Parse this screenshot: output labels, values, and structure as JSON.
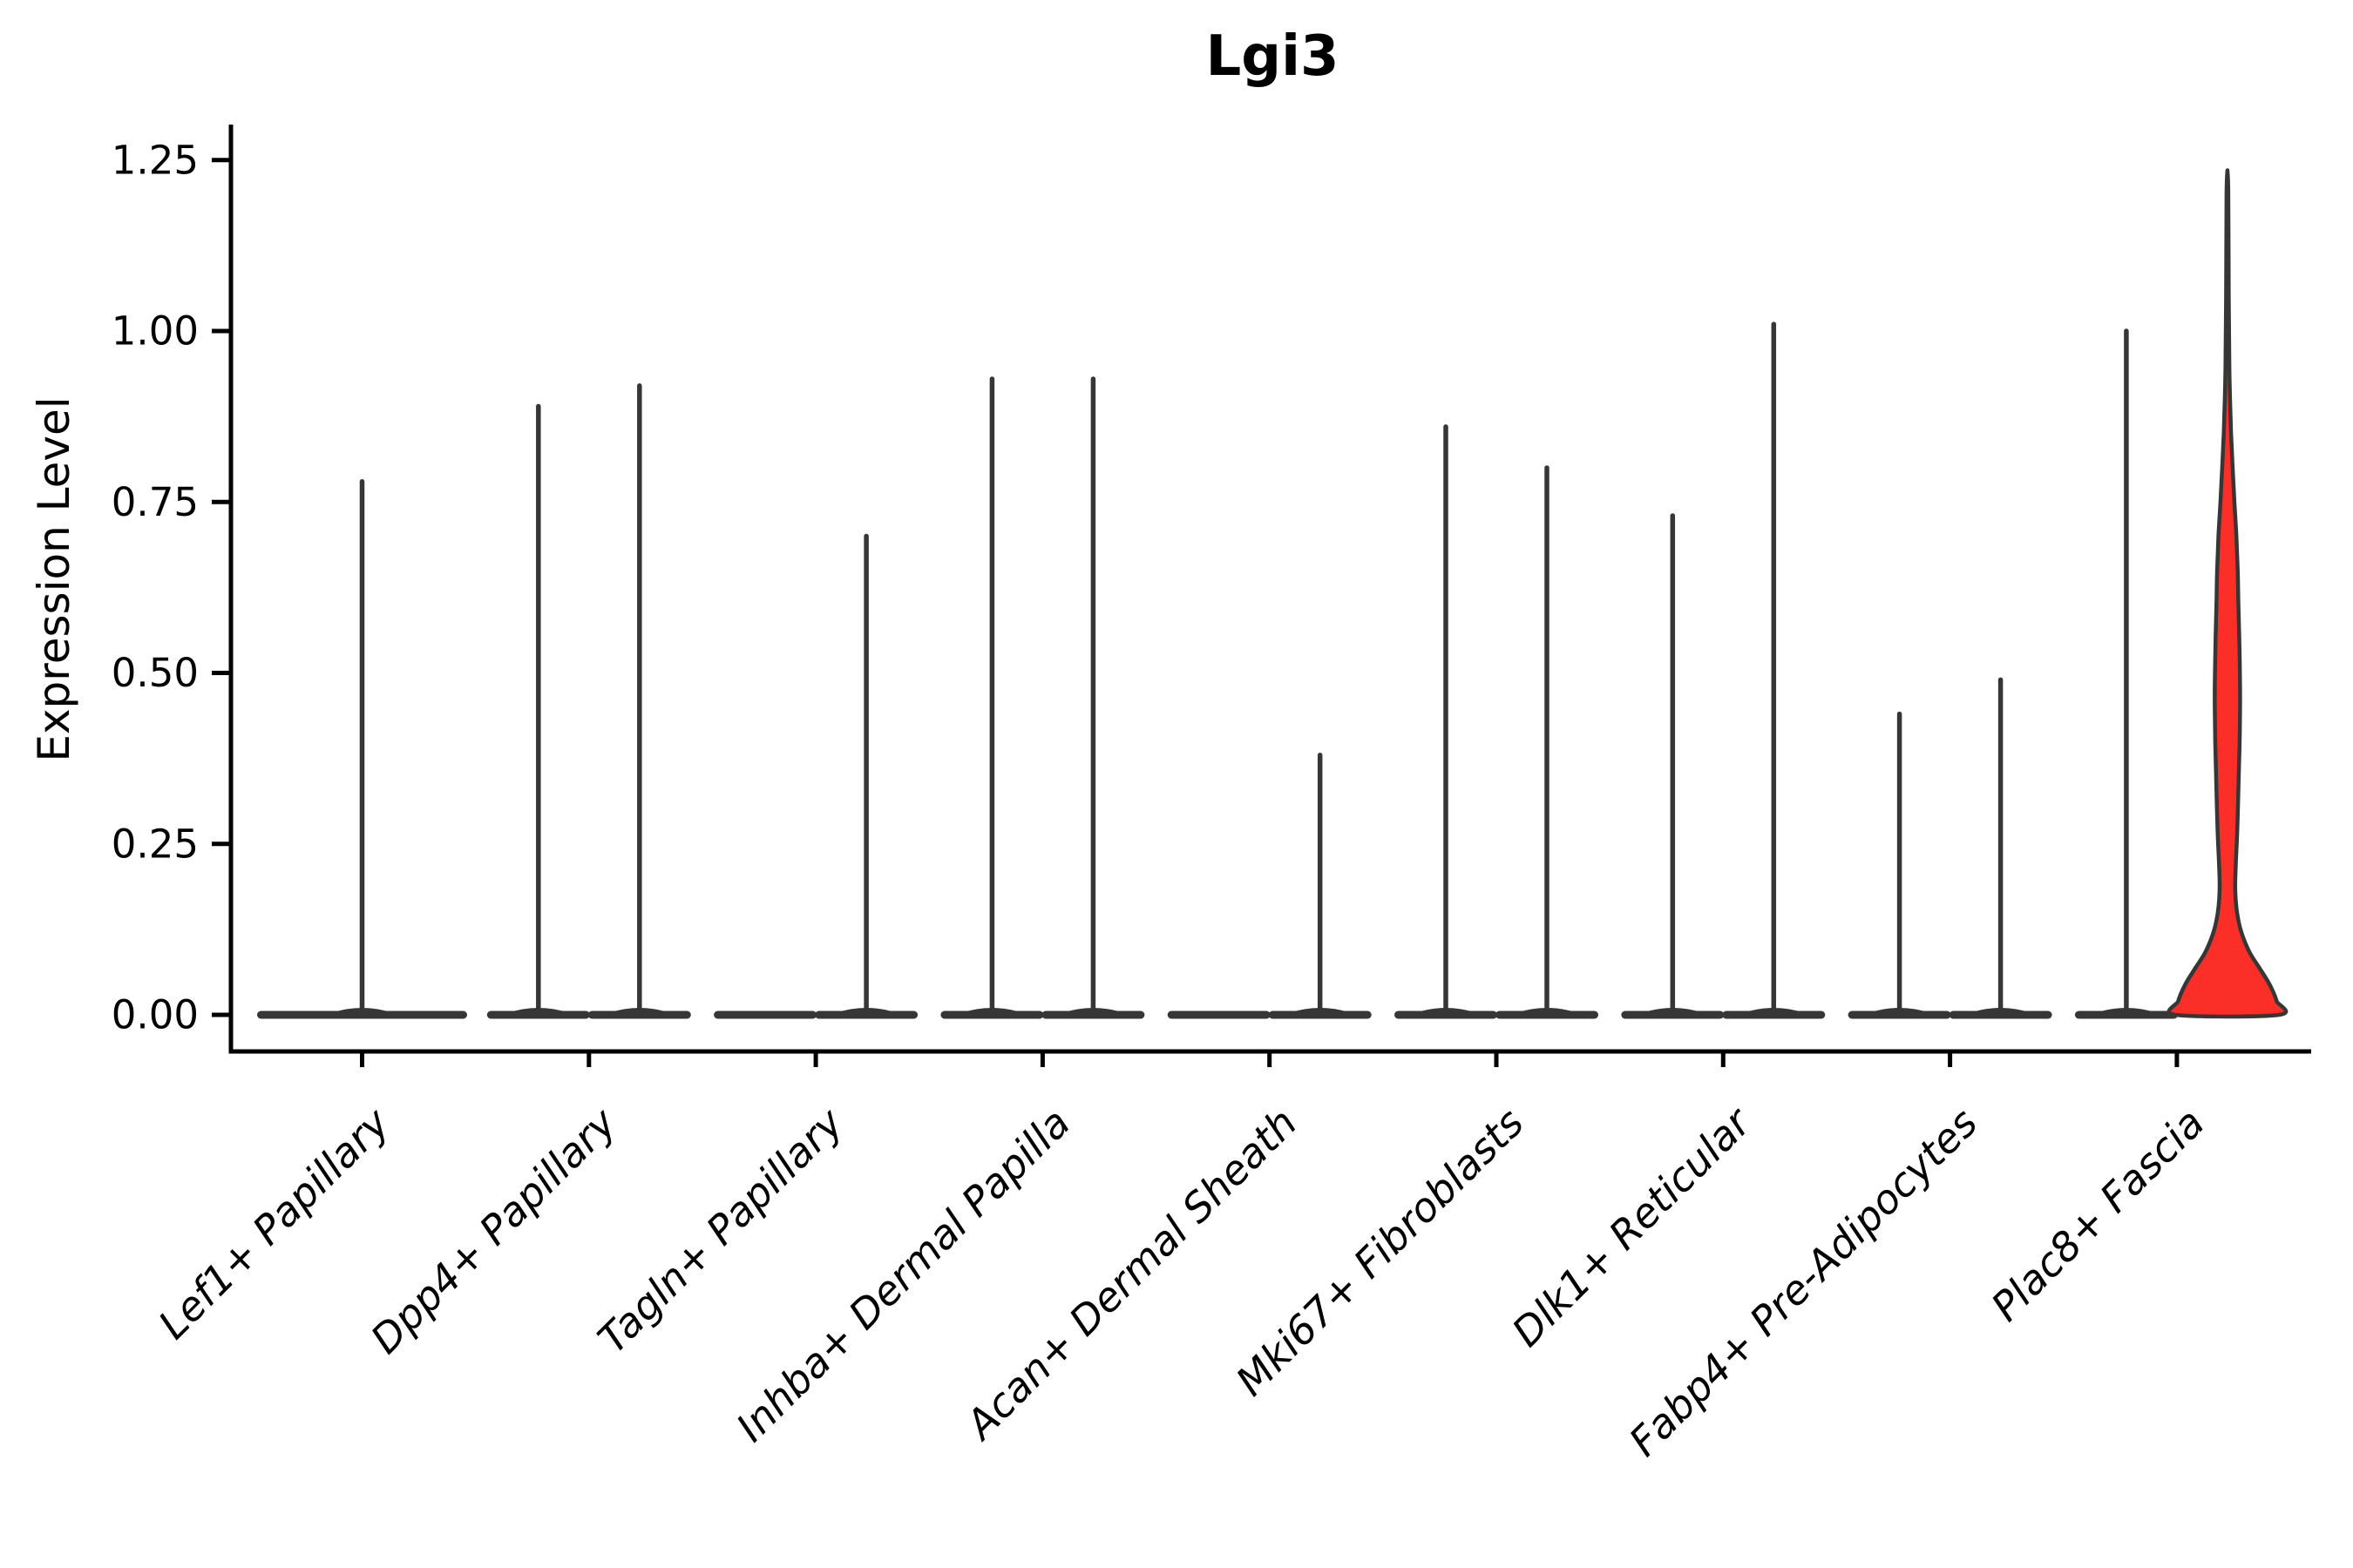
{
  "figure": {
    "title": "Lgi3",
    "y_axis_label": "Expression Level",
    "x_axis_label": ""
  },
  "chart_data": {
    "type": "violin",
    "title": "Lgi3",
    "ylabel": "Expression Level",
    "xlabel": "",
    "ylim": [
      -0.054,
      1.3
    ],
    "yticks": [
      {
        "value": 0.0,
        "label": "0.00"
      },
      {
        "value": 0.25,
        "label": "0.25"
      },
      {
        "value": 0.5,
        "label": "0.50"
      },
      {
        "value": 0.75,
        "label": "0.75"
      },
      {
        "value": 1.0,
        "label": "1.00"
      },
      {
        "value": 1.25,
        "label": "1.25"
      }
    ],
    "grid": false,
    "legend": "none",
    "note": "Violin plot of Lgi3 expression per fibroblast cluster; most cells are near 0 so violins collapse to a wide base with a thin needle up to the max expressed value. Categories with two dodged violins have two groups; single centered violin means one group. The right-hand violin of Plac8+ Fascia is highlighted red with substantial expression density.",
    "categories": [
      {
        "label": "Lef1+ Papillary",
        "violins": [
          {
            "pos": "center",
            "max": 0.78,
            "fill": "none"
          }
        ]
      },
      {
        "label": "Dpp4+ Papillary",
        "violins": [
          {
            "pos": "left",
            "max": 0.89,
            "fill": "none"
          },
          {
            "pos": "right",
            "max": 0.92,
            "fill": "none"
          }
        ]
      },
      {
        "label": "Tagln+ Papillary",
        "violins": [
          {
            "pos": "left",
            "max": 0.0,
            "fill": "none"
          },
          {
            "pos": "right",
            "max": 0.7,
            "fill": "none"
          }
        ]
      },
      {
        "label": "Inhba+ Dermal Papilla",
        "violins": [
          {
            "pos": "left",
            "max": 0.93,
            "fill": "none"
          },
          {
            "pos": "right",
            "max": 0.93,
            "fill": "none"
          }
        ]
      },
      {
        "label": "Acan+ Dermal Sheath",
        "violins": [
          {
            "pos": "left",
            "max": 0.0,
            "fill": "none"
          },
          {
            "pos": "right",
            "max": 0.38,
            "fill": "none"
          }
        ]
      },
      {
        "label": "Mki67+ Fibroblasts",
        "violins": [
          {
            "pos": "left",
            "max": 0.86,
            "fill": "none"
          },
          {
            "pos": "right",
            "max": 0.8,
            "fill": "none"
          }
        ]
      },
      {
        "label": "Dlk1+ Reticular",
        "violins": [
          {
            "pos": "left",
            "max": 0.73,
            "fill": "none"
          },
          {
            "pos": "right",
            "max": 1.01,
            "fill": "none"
          }
        ]
      },
      {
        "label": "Fabp4+ Pre-Adipocytes",
        "violins": [
          {
            "pos": "left",
            "max": 0.44,
            "fill": "none"
          },
          {
            "pos": "right",
            "max": 0.49,
            "fill": "none"
          }
        ]
      },
      {
        "label": "Plac8+ Fascia",
        "violins": [
          {
            "pos": "left",
            "max": 1.0,
            "fill": "none"
          },
          {
            "pos": "right",
            "max": 1.235,
            "fill": "#FC2F28",
            "width_profile": [
              [
                1.235,
                0
              ],
              [
                1.2,
                1.0
              ],
              [
                1.05,
                1.5
              ],
              [
                0.95,
                2.2
              ],
              [
                0.9,
                3.0
              ],
              [
                0.85,
                4.2
              ],
              [
                0.8,
                6.0
              ],
              [
                0.75,
                8.0
              ],
              [
                0.7,
                10.3
              ],
              [
                0.65,
                11.8
              ],
              [
                0.6,
                12.6
              ],
              [
                0.55,
                13.6
              ],
              [
                0.5,
                14.3
              ],
              [
                0.45,
                14.5
              ],
              [
                0.4,
                14.0
              ],
              [
                0.35,
                13.0
              ],
              [
                0.3,
                12.0
              ],
              [
                0.26,
                11.0
              ],
              [
                0.22,
                9.6
              ],
              [
                0.19,
                8.9
              ],
              [
                0.17,
                9.4
              ],
              [
                0.15,
                11.0
              ],
              [
                0.13,
                14.0
              ],
              [
                0.11,
                19.0
              ],
              [
                0.09,
                26.0
              ],
              [
                0.07,
                36.0
              ],
              [
                0.05,
                46.0
              ],
              [
                0.035,
                52.0
              ],
              [
                0.02,
                56.5
              ],
              [
                0.0,
                59.0
              ]
            ]
          }
        ]
      }
    ],
    "colors": {
      "violin_outline": "#363636",
      "highlight_fill": "#FC2F28",
      "axis": "#000000",
      "background": "#ffffff"
    }
  }
}
